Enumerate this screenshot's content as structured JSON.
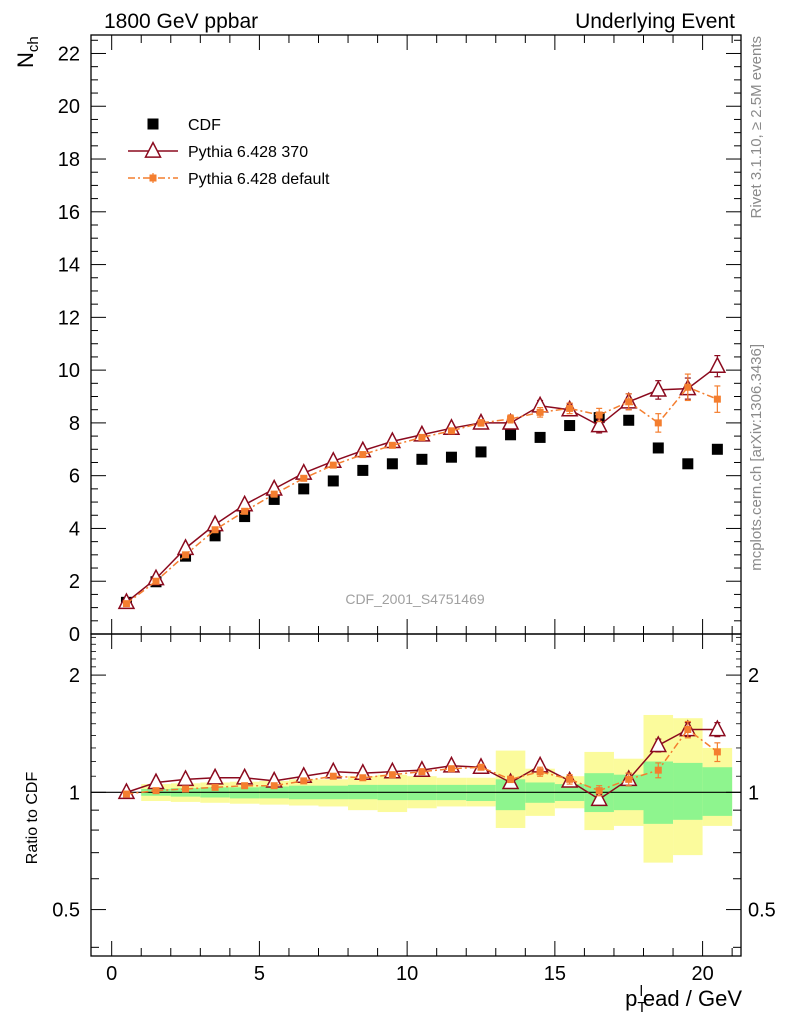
{
  "header": {
    "left_title": "1800 GeV ppbar",
    "right_title": "Underlying Event"
  },
  "side_labels": {
    "rivet": "Rivet 3.1.10, ≥ 2.5M events",
    "mcplots": "mcplots.cern.ch [arXiv:1306.3436]"
  },
  "analysis_id": "CDF_2001_S4751469",
  "colors": {
    "cdf": "#000000",
    "pythia370": "#8b0a1e",
    "pythia_default": "#f47e2f",
    "band_inner": "#8ef58e",
    "band_outer": "#fbfb9c"
  },
  "chart_data": [
    {
      "type": "scatter",
      "role": "main",
      "ylabel": "N_ch",
      "xlim": [
        -0.7,
        21.3
      ],
      "ylim": [
        0,
        22.7
      ],
      "x_ticks": [
        0,
        5,
        10,
        15,
        20
      ],
      "y_ticks": [
        0,
        2,
        4,
        6,
        8,
        10,
        12,
        14,
        16,
        18,
        20,
        22
      ],
      "legend_position": "top-left",
      "x": [
        0.5,
        1.5,
        2.5,
        3.5,
        4.5,
        5.5,
        6.5,
        7.5,
        8.5,
        9.5,
        10.5,
        11.5,
        12.5,
        13.5,
        14.5,
        15.5,
        16.5,
        17.5,
        18.5,
        19.5,
        20.5
      ],
      "series": [
        {
          "name": "CDF",
          "style": "squares",
          "values": [
            1.2,
            1.98,
            2.95,
            3.72,
            4.45,
            5.1,
            5.5,
            5.8,
            6.2,
            6.45,
            6.62,
            6.7,
            6.9,
            7.55,
            7.45,
            7.9,
            8.2,
            8.1,
            7.05,
            6.45,
            7.0
          ]
        },
        {
          "name": "Pythia 6.428 370",
          "style": "triangles-line",
          "values": [
            1.2,
            2.1,
            3.25,
            4.15,
            4.9,
            5.5,
            6.1,
            6.55,
            6.95,
            7.3,
            7.55,
            7.8,
            8.0,
            8.0,
            8.65,
            8.5,
            7.9,
            8.8,
            9.25,
            9.3,
            10.15
          ],
          "errors": [
            0.05,
            0.05,
            0.05,
            0.05,
            0.05,
            0.05,
            0.06,
            0.06,
            0.07,
            0.08,
            0.08,
            0.1,
            0.12,
            0.15,
            0.2,
            0.22,
            0.28,
            0.3,
            0.35,
            0.4,
            0.4
          ]
        },
        {
          "name": "Pythia 6.428 default",
          "style": "squares-dashdot",
          "values": [
            1.15,
            2.0,
            3.0,
            3.95,
            4.65,
            5.3,
            5.9,
            6.4,
            6.8,
            7.15,
            7.45,
            7.7,
            8.0,
            8.15,
            8.4,
            8.55,
            8.3,
            8.8,
            8.0,
            9.35,
            8.9
          ],
          "errors": [
            0.04,
            0.04,
            0.04,
            0.05,
            0.05,
            0.05,
            0.06,
            0.06,
            0.07,
            0.07,
            0.08,
            0.1,
            0.12,
            0.15,
            0.18,
            0.2,
            0.25,
            0.3,
            0.35,
            0.5,
            0.5
          ]
        }
      ]
    },
    {
      "type": "scatter",
      "role": "ratio",
      "ylabel": "Ratio to CDF",
      "xlabel": "p_T^lead / GeV",
      "scale": "log",
      "xlim": [
        -0.7,
        21.3
      ],
      "ylim": [
        0.38,
        2.55
      ],
      "x_ticks": [
        0,
        5,
        10,
        15,
        20
      ],
      "y_ticks": [
        0.5,
        1,
        2
      ],
      "reference_line": 1,
      "bands": {
        "edges": [
          1,
          2,
          3,
          4,
          5,
          6,
          7,
          8,
          9,
          10,
          11,
          12,
          13,
          14,
          15,
          16,
          17,
          18,
          19,
          20,
          21
        ],
        "inner_lo": [
          0.98,
          0.975,
          0.97,
          0.965,
          0.965,
          0.96,
          0.96,
          0.96,
          0.955,
          0.955,
          0.955,
          0.95,
          0.9,
          0.94,
          0.95,
          0.89,
          0.9,
          0.83,
          0.85,
          0.87
        ],
        "inner_hi": [
          1.02,
          1.025,
          1.03,
          1.03,
          1.035,
          1.04,
          1.04,
          1.045,
          1.045,
          1.045,
          1.045,
          1.045,
          1.08,
          1.06,
          1.05,
          1.12,
          1.11,
          1.2,
          1.19,
          1.16
        ],
        "outer_lo": [
          0.95,
          0.945,
          0.94,
          0.935,
          0.93,
          0.925,
          0.92,
          0.9,
          0.89,
          0.91,
          0.92,
          0.92,
          0.81,
          0.87,
          0.91,
          0.8,
          0.82,
          0.66,
          0.69,
          0.82
        ],
        "outer_hi": [
          1.05,
          1.055,
          1.06,
          1.065,
          1.07,
          1.08,
          1.08,
          1.1,
          1.11,
          1.1,
          1.09,
          1.09,
          1.28,
          1.15,
          1.1,
          1.27,
          1.22,
          1.58,
          1.55,
          1.3
        ]
      },
      "x": [
        0.5,
        1.5,
        2.5,
        3.5,
        4.5,
        5.5,
        6.5,
        7.5,
        8.5,
        9.5,
        10.5,
        11.5,
        12.5,
        13.5,
        14.5,
        15.5,
        16.5,
        17.5,
        18.5,
        19.5,
        20.5
      ],
      "series": [
        {
          "name": "Pythia 6.428 370",
          "style": "triangles-line",
          "values": [
            1.0,
            1.06,
            1.08,
            1.09,
            1.09,
            1.07,
            1.1,
            1.13,
            1.12,
            1.13,
            1.14,
            1.17,
            1.16,
            1.06,
            1.17,
            1.07,
            0.96,
            1.08,
            1.32,
            1.45,
            1.45
          ],
          "errors": [
            0.01,
            0.01,
            0.01,
            0.01,
            0.01,
            0.01,
            0.01,
            0.01,
            0.01,
            0.01,
            0.01,
            0.01,
            0.02,
            0.02,
            0.03,
            0.03,
            0.03,
            0.04,
            0.05,
            0.06,
            0.06
          ]
        },
        {
          "name": "Pythia 6.428 default",
          "style": "squares-dashdot",
          "values": [
            0.99,
            1.01,
            1.02,
            1.03,
            1.04,
            1.04,
            1.07,
            1.1,
            1.09,
            1.11,
            1.13,
            1.15,
            1.16,
            1.08,
            1.13,
            1.08,
            1.01,
            1.08,
            1.14,
            1.45,
            1.27
          ],
          "errors": [
            0.01,
            0.01,
            0.01,
            0.01,
            0.01,
            0.01,
            0.01,
            0.01,
            0.01,
            0.01,
            0.01,
            0.01,
            0.02,
            0.02,
            0.03,
            0.03,
            0.03,
            0.04,
            0.05,
            0.07,
            0.07
          ]
        }
      ]
    }
  ]
}
